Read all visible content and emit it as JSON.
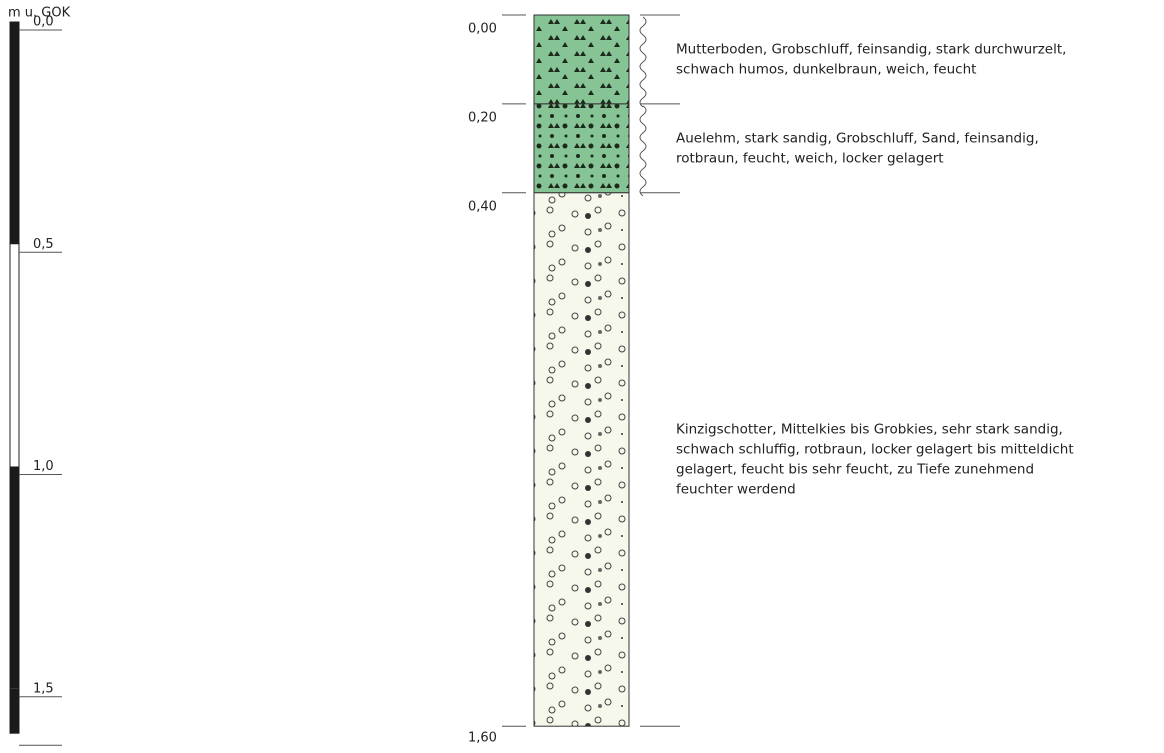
{
  "scale": {
    "unit": "m u. GOK",
    "ticks": [
      {
        "value": 0,
        "label": "0,0"
      },
      {
        "value": 0.5,
        "label": "0,5"
      },
      {
        "value": 1.0,
        "label": "1,0"
      },
      {
        "value": 1.5,
        "label": "1,5"
      }
    ]
  },
  "depths": [
    {
      "value": 0,
      "label": "0,00"
    },
    {
      "value": 0.2,
      "label": "0,20"
    },
    {
      "value": 0.4,
      "label": "0,40"
    },
    {
      "value": 1.6,
      "label": "1,60"
    }
  ],
  "layers": [
    {
      "description": [
        "Mutterboden, Grobschluff, feinsandig, stark durchwurzelt,",
        "schwach humos, dunkelbraun, weich, feucht"
      ]
    },
    {
      "description": [
        "Auelehm, stark sandig, Grobschluff, Sand, feinsandig,",
        "rotbraun, feucht, weich, locker gelagert"
      ]
    },
    {
      "description": [
        "Kinzigschotter, Mittelkies bis Grobkies, sehr stark sandig,",
        "schwach schluffig, rotbraun, locker gelagert bis mitteldicht",
        "gelagert, feucht bis sehr feucht, zu Tiefe zunehmend",
        "feuchter werdend"
      ]
    }
  ]
}
